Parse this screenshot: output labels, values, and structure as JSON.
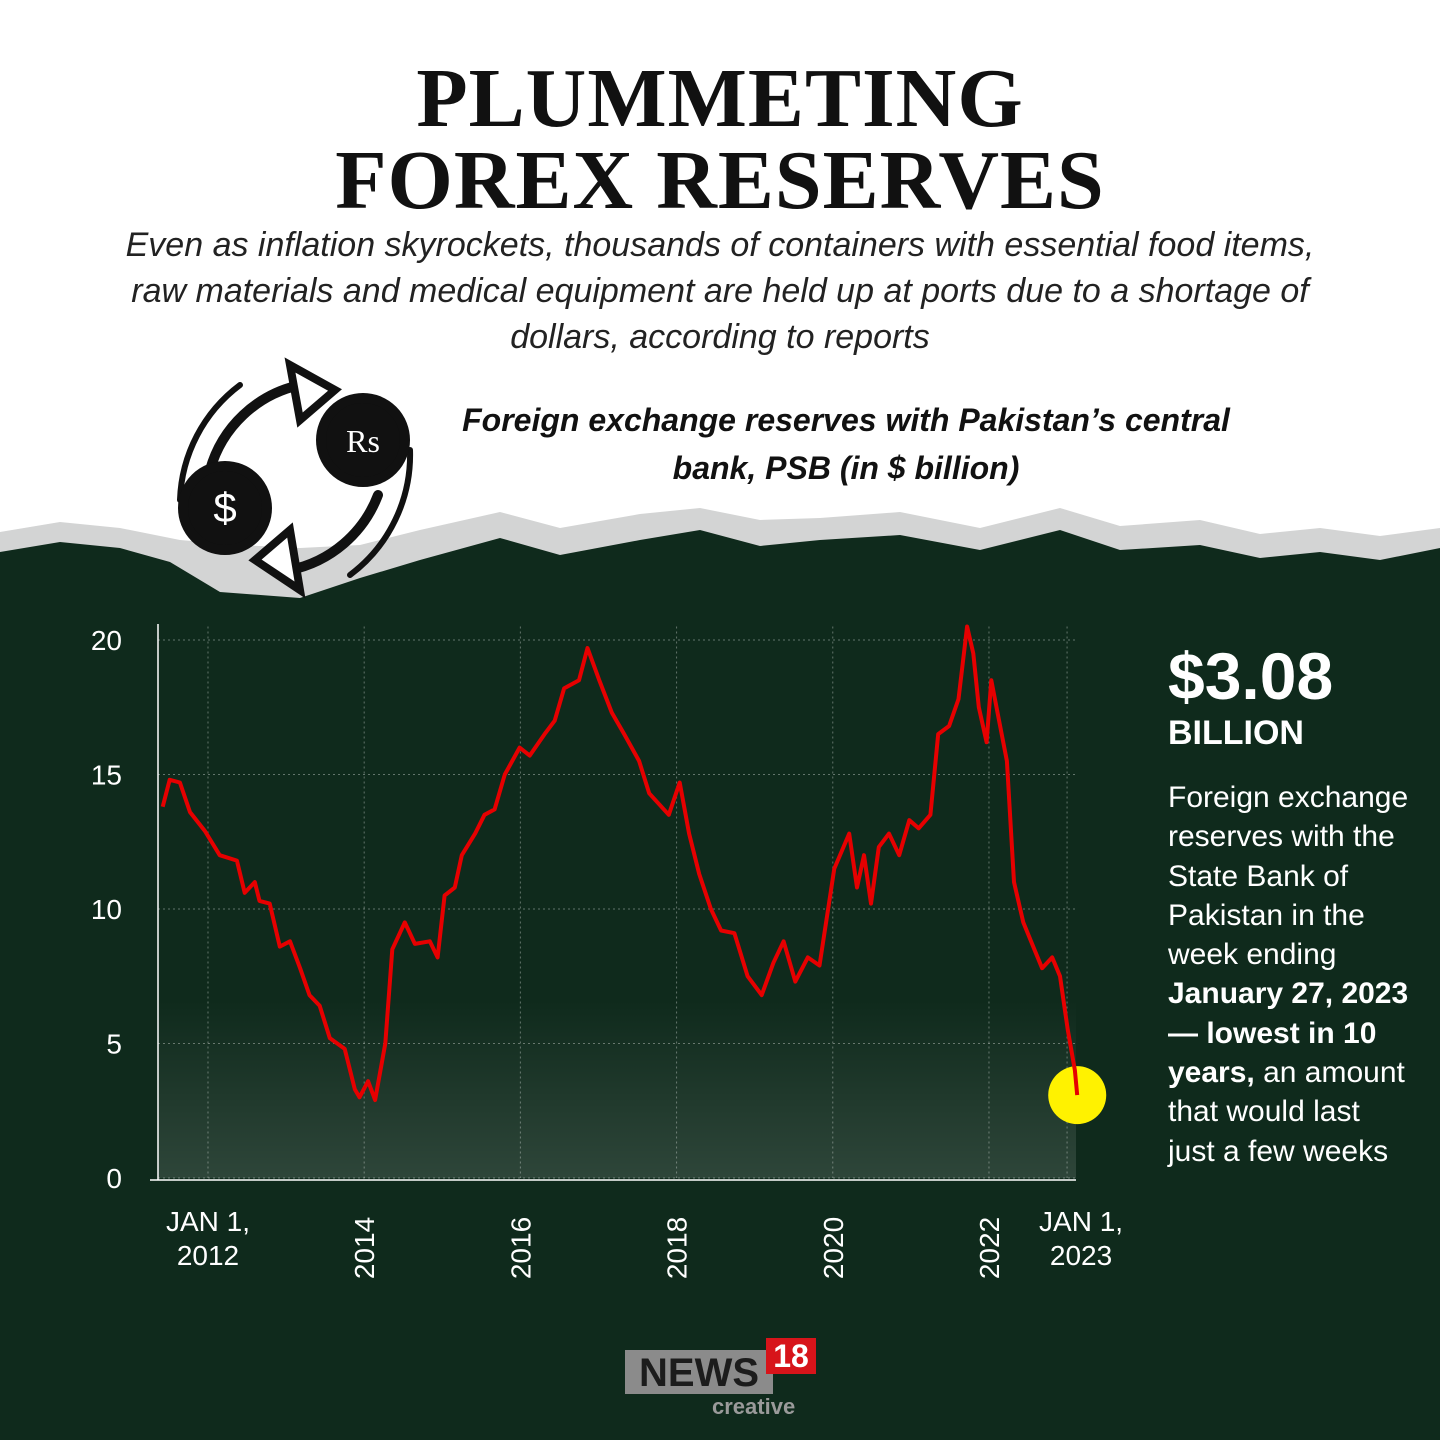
{
  "header": {
    "title": [
      "PLUMMETING",
      "FOREX RESERVES"
    ],
    "subtitle": "Even as inflation skyrockets, thousands of containers with essential food items, raw materials and medical equipment are held up at ports due to a shortage of dollars, according to reports",
    "icon_symbols": [
      "$",
      "Rs"
    ]
  },
  "chart_data": {
    "type": "line",
    "title": "Foreign exchange reserves with Pakistan’s central bank, PSB (in $ billion)",
    "x": [
      2011.42,
      2011.51,
      2011.64,
      2011.77,
      2011.96,
      2012.15,
      2012.37,
      2012.47,
      2012.6,
      2012.66,
      2012.79,
      2012.92,
      2013.05,
      2013.18,
      2013.3,
      2013.43,
      2013.56,
      2013.75,
      2013.88,
      2013.94,
      2014.05,
      2014.14,
      2014.27,
      2014.36,
      2014.52,
      2014.65,
      2014.84,
      2014.94,
      2015.03,
      2015.16,
      2015.25,
      2015.42,
      2015.54,
      2015.67,
      2015.8,
      2015.99,
      2016.12,
      2016.31,
      2016.44,
      2016.56,
      2016.75,
      2016.86,
      2017.01,
      2017.17,
      2017.33,
      2017.52,
      2017.65,
      2017.9,
      2018.04,
      2018.16,
      2018.29,
      2018.44,
      2018.57,
      2018.74,
      2018.91,
      2019.09,
      2019.24,
      2019.37,
      2019.52,
      2019.68,
      2019.83,
      2020.02,
      2020.21,
      2020.31,
      2020.4,
      2020.49,
      2020.59,
      2020.72,
      2020.85,
      2020.98,
      2021.1,
      2021.25,
      2021.35,
      2021.49,
      2021.61,
      2021.72,
      2021.8,
      2021.87,
      2021.97,
      2022.03,
      2022.13,
      2022.23,
      2022.32,
      2022.44,
      2022.58,
      2022.68,
      2022.81,
      2022.91,
      2023.01,
      2023.1,
      2023.13
    ],
    "values": [
      13.8,
      14.8,
      14.7,
      13.6,
      12.9,
      12.0,
      11.8,
      10.6,
      11.0,
      10.3,
      10.2,
      8.6,
      8.8,
      7.8,
      6.8,
      6.4,
      5.2,
      4.8,
      3.3,
      3.0,
      3.6,
      2.9,
      5.0,
      8.5,
      9.5,
      8.7,
      8.8,
      8.2,
      10.5,
      10.8,
      12.0,
      12.8,
      13.5,
      13.7,
      15.0,
      16.0,
      15.7,
      16.5,
      17.0,
      18.2,
      18.5,
      19.7,
      18.5,
      17.3,
      16.5,
      15.5,
      14.3,
      13.5,
      14.7,
      12.8,
      11.3,
      10.0,
      9.2,
      9.1,
      7.5,
      6.8,
      8.0,
      8.8,
      7.3,
      8.2,
      7.9,
      11.5,
      12.8,
      10.8,
      12.0,
      10.2,
      12.3,
      12.8,
      12.0,
      13.3,
      13.0,
      13.5,
      16.5,
      16.8,
      17.8,
      20.5,
      19.5,
      17.5,
      16.2,
      18.5,
      17.0,
      15.5,
      11.0,
      9.5,
      8.5,
      7.8,
      8.2,
      7.5,
      5.5,
      4.0,
      3.08
    ],
    "color": "#e60000",
    "highlight_color": "#fff200",
    "xlim": [
      2011.36,
      2023.14
    ],
    "ylim": [
      0,
      20.5
    ],
    "xticks": [
      {
        "value": 2012,
        "label": "JAN 1, 2012"
      },
      2014,
      2016,
      2018,
      2020,
      2022,
      {
        "value": 2023,
        "label": "JAN 1, 2023"
      }
    ],
    "yticks": [
      0,
      5,
      10,
      15,
      20
    ],
    "grid": true,
    "annotation": {
      "value_label": "$3.08",
      "unit": "BILLION",
      "text": [
        {
          "text": "Foreign exchange reserves with the State Bank of Pakistan in the week ending ",
          "bold": false
        },
        {
          "text": "January 27, 2023 — lowest in 10 years,",
          "bold": true
        },
        {
          "text": " an amount that would last just a few weeks",
          "bold": false
        }
      ]
    }
  },
  "logo": {
    "name": "NEWS",
    "number": "18",
    "tag": "creative"
  }
}
